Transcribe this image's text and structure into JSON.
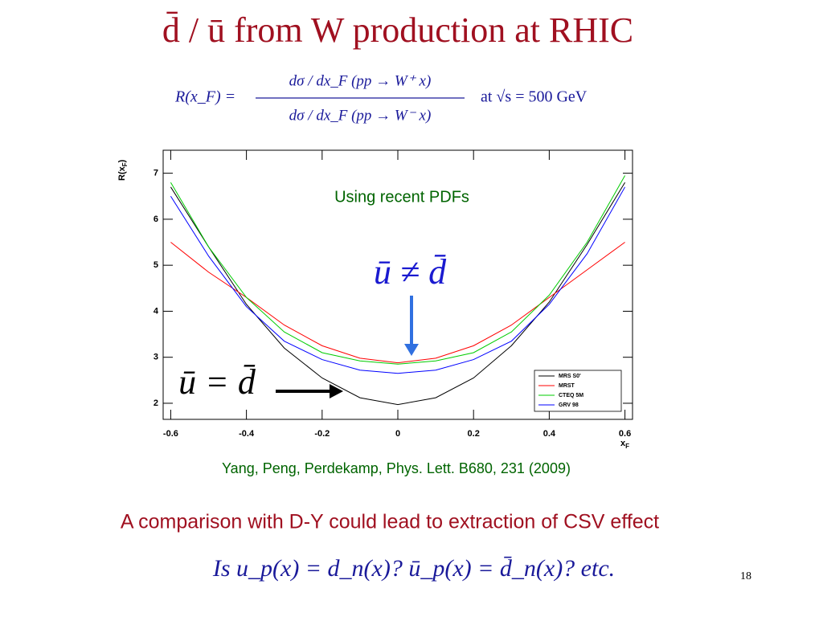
{
  "slide": {
    "title": "d̄ / ū  from W production at RHIC",
    "formula": {
      "lhs": "R(x_F) =",
      "numerator": "dσ / dx_F (pp → W⁺ x)",
      "denominator": "dσ / dx_F (pp → W⁻ x)",
      "energy": "at √s = 500 GeV"
    },
    "citation": "Yang, Peng, Perdekamp, Phys. Lett. B680, 231 (2009)",
    "statement": "A comparison with D-Y could lead to extraction of CSV effect",
    "question": "Is  u_p(x) = d_n(x)?  ū_p(x) = d̄_n(x)? etc.",
    "page_number": "18"
  },
  "chart_data": {
    "type": "line",
    "x_label": {
      "main": "x",
      "sub": "F"
    },
    "y_label": {
      "main": "R(x",
      "sub": "F",
      "close": ")"
    },
    "annotations": [
      "Using recent PDFs",
      "ū ≠ d̄",
      "ū = d̄"
    ],
    "x": [
      -0.6,
      -0.5,
      -0.4,
      -0.3,
      -0.2,
      -0.1,
      0,
      0.1,
      0.2,
      0.3,
      0.4,
      0.5,
      0.6
    ],
    "series": [
      {
        "name": "MRS S0'",
        "color": "#000000",
        "values": [
          6.7,
          5.4,
          4.15,
          3.2,
          2.55,
          2.12,
          1.97,
          2.12,
          2.55,
          3.25,
          4.2,
          5.45,
          6.8
        ]
      },
      {
        "name": "MRST",
        "color": "#ff0000",
        "values": [
          5.5,
          4.85,
          4.3,
          3.7,
          3.25,
          2.98,
          2.88,
          2.98,
          3.25,
          3.7,
          4.3,
          4.9,
          5.5
        ]
      },
      {
        "name": "CTEQ 5M",
        "color": "#00cc00",
        "values": [
          6.8,
          5.4,
          4.3,
          3.55,
          3.1,
          2.92,
          2.85,
          2.92,
          3.1,
          3.55,
          4.35,
          5.5,
          6.95
        ]
      },
      {
        "name": "GRV 98",
        "color": "#0000ff",
        "values": [
          6.5,
          5.2,
          4.1,
          3.35,
          2.95,
          2.72,
          2.65,
          2.72,
          2.95,
          3.35,
          4.15,
          5.25,
          6.7
        ]
      }
    ],
    "xlim": [
      -0.62,
      0.62
    ],
    "ylim": [
      1.65,
      7.5
    ],
    "xticks": [
      -0.6,
      -0.4,
      -0.2,
      0,
      0.2,
      0.4,
      0.6
    ],
    "yticks": [
      2,
      3,
      4,
      5,
      6,
      7
    ],
    "legend": "lower right"
  }
}
